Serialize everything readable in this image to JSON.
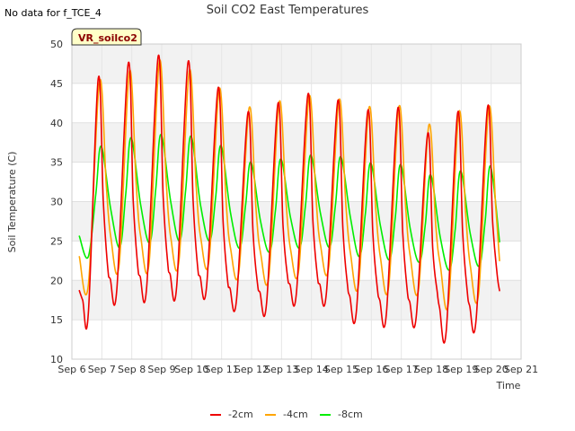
{
  "chart_data": {
    "type": "line",
    "title": "Soil CO2 East Temperatures",
    "no_data_note": "No data for f_TCE_4",
    "badge": "VR_soilco2",
    "xlabel": "Time",
    "ylabel": "Soil Temperature (C)",
    "xlim": [
      6,
      21
    ],
    "ylim": [
      10,
      50
    ],
    "x_ticks": [
      6,
      7,
      8,
      9,
      10,
      11,
      12,
      13,
      14,
      15,
      16,
      17,
      18,
      19,
      20,
      21
    ],
    "x_tick_labels": [
      "Sep 6",
      "Sep 7",
      "Sep 8",
      "Sep 9",
      "Sep 10",
      "Sep 11",
      "Sep 12",
      "Sep 13",
      "Sep 14",
      "Sep 15",
      "Sep 16",
      "Sep 17",
      "Sep 18",
      "Sep 19",
      "Sep 20",
      "Sep 21"
    ],
    "y_ticks": [
      10,
      15,
      20,
      25,
      30,
      35,
      40,
      45,
      50
    ],
    "y_tick_labels": [
      "10",
      "15",
      "20",
      "25",
      "30",
      "35",
      "40",
      "45",
      "50"
    ],
    "grid": true,
    "legend_position": "bottom-center",
    "series": [
      {
        "name": "-2cm",
        "color": "#ee0000",
        "x": [
          6.25,
          6.36,
          6.55,
          6.88,
          7.05,
          7.2,
          7.28,
          7.5,
          7.88,
          8.05,
          8.2,
          8.28,
          8.5,
          8.88,
          9.05,
          9.2,
          9.28,
          9.5,
          9.88,
          10.05,
          10.2,
          10.28,
          10.5,
          10.88,
          11.05,
          11.2,
          11.28,
          11.5,
          11.88,
          12.05,
          12.2,
          12.28,
          12.5,
          12.88,
          13.05,
          13.2,
          13.28,
          13.5,
          13.88,
          14.05,
          14.2,
          14.28,
          14.5,
          14.88,
          15.05,
          15.2,
          15.28,
          15.5,
          15.88,
          16.05,
          16.2,
          16.28,
          16.5,
          16.88,
          17.05,
          17.2,
          17.28,
          17.5,
          17.88,
          18.05,
          18.2,
          18.28,
          18.5,
          18.88,
          19.05,
          19.2,
          19.28,
          19.5,
          19.88,
          20.05,
          20.2,
          20.28
        ],
        "y": [
          18.7,
          17.5,
          15.8,
          45.6,
          30,
          21.5,
          20.2,
          18.8,
          47.5,
          30,
          21.8,
          20.5,
          19.2,
          48.4,
          30.5,
          22.2,
          20.8,
          19.3,
          47.7,
          30,
          21.7,
          20.5,
          19.3,
          44.4,
          27.5,
          20,
          19,
          17.6,
          41.3,
          26,
          19.5,
          18.5,
          17.1,
          42.4,
          27,
          20.5,
          19.5,
          18.5,
          43.6,
          27.5,
          20.5,
          19.5,
          18.4,
          42.8,
          26.5,
          19.5,
          18,
          16.1,
          41.5,
          26,
          19,
          17.5,
          15.7,
          41.8,
          26,
          18.7,
          17.3,
          15.4,
          38.6,
          24,
          18.5,
          16.5,
          13.6,
          41.2,
          26,
          18.7,
          16.8,
          15.1,
          42,
          27.5,
          20.8,
          18.7
        ]
      },
      {
        "name": "-4cm",
        "color": "#ffa500",
        "x": [
          6.25,
          6.55,
          6.92,
          7.15,
          7.3,
          7.58,
          7.92,
          8.15,
          8.3,
          8.58,
          8.92,
          9.15,
          9.3,
          9.58,
          9.92,
          10.15,
          10.3,
          10.58,
          10.92,
          11.15,
          11.3,
          11.58,
          11.92,
          12.15,
          12.3,
          12.58,
          12.92,
          13.15,
          13.3,
          13.58,
          13.92,
          14.15,
          14.3,
          14.58,
          14.92,
          15.15,
          15.3,
          15.58,
          15.92,
          16.15,
          16.3,
          16.58,
          16.92,
          17.15,
          17.3,
          17.58,
          17.92,
          18.15,
          18.3,
          18.58,
          18.92,
          19.15,
          19.3,
          19.58,
          19.92,
          20.15,
          20.28
        ],
        "y": [
          23,
          19.4,
          45.2,
          32,
          25.5,
          22.1,
          46.5,
          32,
          25.5,
          22.3,
          47.8,
          32.5,
          25.5,
          22.6,
          46.6,
          32,
          25.5,
          22.6,
          44.3,
          30,
          24,
          21.2,
          41.9,
          29,
          23.5,
          20.6,
          42.6,
          30,
          24,
          21.5,
          43.3,
          30.5,
          24.5,
          21.8,
          42.9,
          29.5,
          23.5,
          19.7,
          41.9,
          29,
          23,
          19.3,
          42,
          29,
          23,
          19,
          39.7,
          27,
          22,
          17.3,
          41.3,
          28.5,
          22,
          18.3,
          41.9,
          29.5,
          22.5
        ]
      },
      {
        "name": "-8cm",
        "color": "#00ee00",
        "x": [
          6.25,
          6.55,
          6.8,
          6.98,
          7.3,
          7.6,
          7.8,
          7.98,
          8.3,
          8.6,
          8.8,
          8.98,
          9.3,
          9.6,
          9.8,
          9.98,
          10.3,
          10.6,
          10.8,
          10.98,
          11.3,
          11.6,
          11.8,
          11.98,
          12.3,
          12.6,
          12.8,
          12.98,
          13.3,
          13.6,
          13.8,
          13.98,
          14.3,
          14.6,
          14.8,
          14.98,
          15.3,
          15.6,
          15.8,
          15.98,
          16.3,
          16.6,
          16.8,
          16.98,
          17.3,
          17.6,
          17.8,
          17.98,
          18.3,
          18.6,
          18.8,
          18.98,
          19.3,
          19.6,
          19.8,
          19.98,
          20.28
        ],
        "y": [
          25.6,
          23,
          31,
          37,
          29,
          24.2,
          31,
          38.1,
          29.5,
          24.8,
          31.5,
          38.5,
          30,
          25,
          31.5,
          38.3,
          29.5,
          25,
          30.5,
          37.1,
          28.5,
          24.1,
          29.5,
          35,
          27.5,
          23.6,
          29,
          35.4,
          28,
          24.1,
          29.5,
          35.9,
          28.5,
          24.2,
          29.5,
          35.7,
          28,
          23,
          28.5,
          34.9,
          27,
          22.6,
          28,
          34.7,
          26.5,
          22.3,
          27,
          33.4,
          25.5,
          21.3,
          26.5,
          33.9,
          26,
          21.8,
          27.5,
          34.5,
          24.9
        ]
      }
    ]
  }
}
